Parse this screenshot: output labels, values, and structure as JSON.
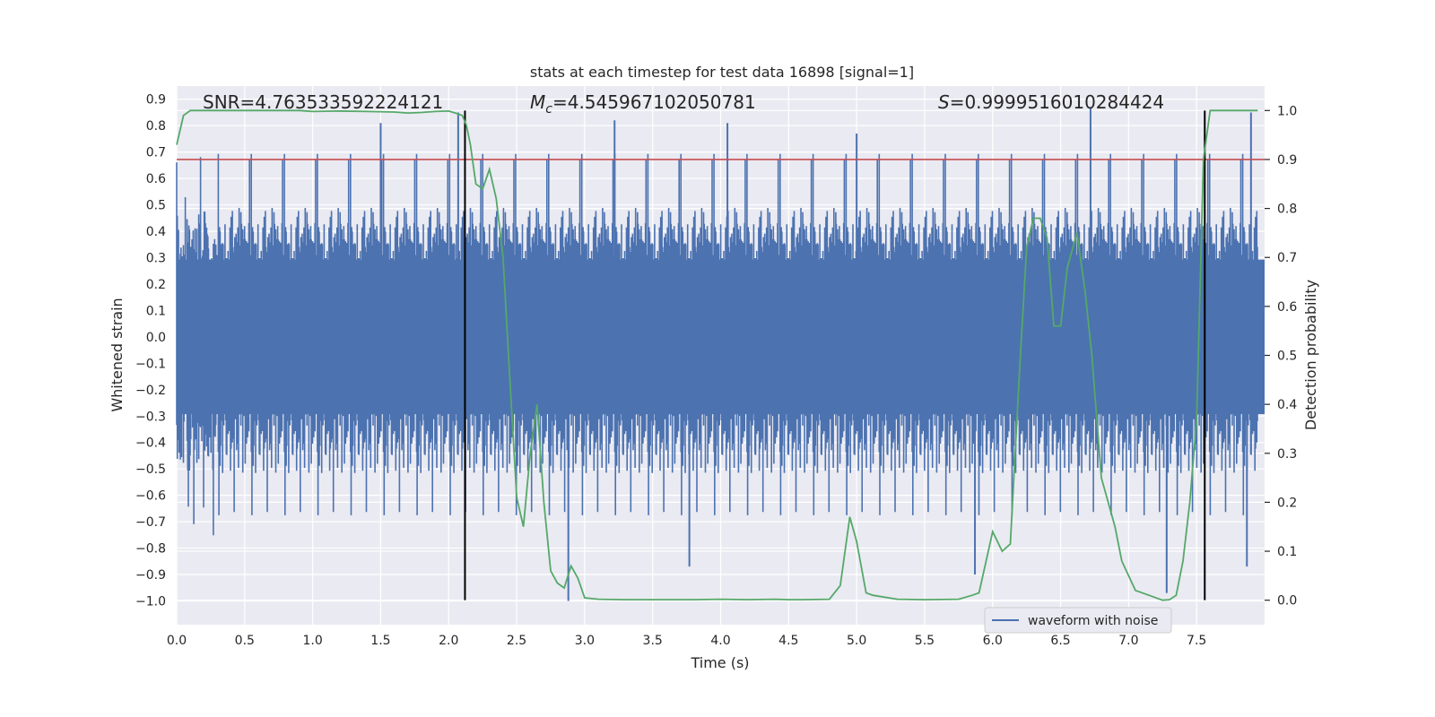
{
  "chart_data": {
    "type": "line",
    "title": "stats at each timestep for test data 16898 [signal=1]",
    "xlabel": "Time (s)",
    "ylabel_left": "Whitened strain",
    "ylabel_right": "Detection probability",
    "xlim": [
      0.0,
      8.0
    ],
    "ylim_left": [
      -1.09,
      0.95
    ],
    "ylim_right": [
      -0.05,
      1.05
    ],
    "x_ticks": [
      "0.0",
      "0.5",
      "1.0",
      "1.5",
      "2.0",
      "2.5",
      "3.0",
      "3.5",
      "4.0",
      "4.5",
      "5.0",
      "5.5",
      "6.0",
      "6.5",
      "7.0",
      "7.5"
    ],
    "y_left_ticks": [
      "0.9",
      "0.8",
      "0.7",
      "0.6",
      "0.5",
      "0.4",
      "0.3",
      "0.2",
      "0.1",
      "0.0",
      "−0.1",
      "−0.2",
      "−0.3",
      "−0.4",
      "−0.5",
      "−0.6",
      "−0.7",
      "−0.8",
      "−0.9",
      "−1.0"
    ],
    "y_right_ticks": [
      "0.0",
      "0.1",
      "0.2",
      "0.3",
      "0.4",
      "0.5",
      "0.6",
      "0.7",
      "0.8",
      "0.9",
      "1.0"
    ],
    "grid": true,
    "legend": {
      "label": "waveform with noise",
      "position": "lower-right"
    },
    "annotations": {
      "snr_label": "SNR=4.763533592224121",
      "mc_label": "=4.545967102050781",
      "s_label": "=0.9999516010284424"
    },
    "threshold_right": 0.9,
    "signal_window": [
      2.12,
      7.56
    ],
    "waveform_envelope": {
      "name": "waveform with noise",
      "upper_typical": 0.45,
      "lower_typical": -0.45,
      "peaks": [
        {
          "x": 2.07,
          "y": 0.85
        },
        {
          "x": 1.5,
          "y": 0.81
        },
        {
          "x": 3.22,
          "y": 0.82
        },
        {
          "x": 4.05,
          "y": 0.81
        },
        {
          "x": 5.0,
          "y": 0.77
        },
        {
          "x": 6.72,
          "y": 0.87
        },
        {
          "x": 7.9,
          "y": 0.85
        },
        {
          "x": 2.88,
          "y": -1.0
        },
        {
          "x": 7.28,
          "y": -0.97
        },
        {
          "x": 3.77,
          "y": -0.87
        },
        {
          "x": 5.87,
          "y": -0.9
        },
        {
          "x": 7.87,
          "y": -0.87
        }
      ]
    },
    "series": [
      {
        "name": "Detection probability",
        "axis": "right",
        "x": [
          0.0,
          0.05,
          0.1,
          0.3,
          0.5,
          0.7,
          0.9,
          1.0,
          1.2,
          1.4,
          1.6,
          1.7,
          1.8,
          1.9,
          2.0,
          2.05,
          2.1,
          2.13,
          2.16,
          2.2,
          2.25,
          2.3,
          2.35,
          2.4,
          2.45,
          2.5,
          2.55,
          2.6,
          2.65,
          2.7,
          2.75,
          2.8,
          2.85,
          2.9,
          2.95,
          3.0,
          3.1,
          3.3,
          3.5,
          3.8,
          4.0,
          4.2,
          4.4,
          4.5,
          4.6,
          4.8,
          4.88,
          4.95,
          5.0,
          5.07,
          5.12,
          5.3,
          5.5,
          5.75,
          5.85,
          5.9,
          6.0,
          6.07,
          6.13,
          6.2,
          6.25,
          6.3,
          6.35,
          6.4,
          6.45,
          6.5,
          6.55,
          6.62,
          6.68,
          6.73,
          6.8,
          6.85,
          6.9,
          6.95,
          7.05,
          7.15,
          7.25,
          7.3,
          7.35,
          7.4,
          7.45,
          7.5,
          7.55,
          7.6,
          7.7,
          7.8,
          7.95
        ],
        "y": [
          0.93,
          0.99,
          1.0,
          1.0,
          1.0,
          1.0,
          1.0,
          0.998,
          0.999,
          0.998,
          0.997,
          0.995,
          0.996,
          0.998,
          0.999,
          0.995,
          0.99,
          0.97,
          0.93,
          0.85,
          0.84,
          0.88,
          0.82,
          0.7,
          0.45,
          0.21,
          0.15,
          0.3,
          0.4,
          0.2,
          0.06,
          0.035,
          0.025,
          0.07,
          0.045,
          0.005,
          0.002,
          0.001,
          0.001,
          0.001,
          0.002,
          0.001,
          0.002,
          0.001,
          0.001,
          0.002,
          0.03,
          0.17,
          0.12,
          0.015,
          0.01,
          0.002,
          0.001,
          0.002,
          0.01,
          0.015,
          0.14,
          0.1,
          0.115,
          0.48,
          0.72,
          0.78,
          0.78,
          0.74,
          0.56,
          0.56,
          0.68,
          0.75,
          0.63,
          0.5,
          0.25,
          0.2,
          0.15,
          0.08,
          0.02,
          0.01,
          0.0,
          0.001,
          0.01,
          0.08,
          0.2,
          0.37,
          0.9,
          1.0,
          1.0,
          1.0,
          1.0
        ]
      }
    ],
    "colors": {
      "background": "#eaeaf2",
      "grid": "#ffffff",
      "waveform": "#4c72b0",
      "probability": "#55a868",
      "threshold": "#c44e52",
      "window": "#000000",
      "text": "#262626"
    }
  }
}
